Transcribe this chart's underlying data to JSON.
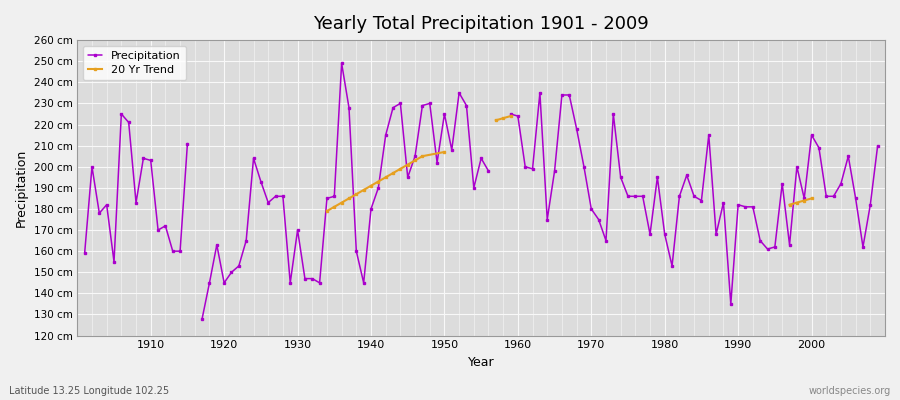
{
  "title": "Yearly Total Precipitation 1901 - 2009",
  "xlabel": "Year",
  "ylabel": "Precipitation",
  "footnote_left": "Latitude 13.25 Longitude 102.25",
  "footnote_right": "worldspecies.org",
  "ylim": [
    120,
    260
  ],
  "xlim": [
    1900,
    2010
  ],
  "bg_color": "#f0f0f0",
  "plot_bg_color": "#dcdcdc",
  "line_color": "#aa00cc",
  "trend_color": "#e6a020",
  "grid_color": "#f8f8f8",
  "years": [
    1901,
    1902,
    1903,
    1904,
    1905,
    1906,
    1907,
    1908,
    1909,
    1910,
    1911,
    1912,
    1913,
    1914,
    1915,
    1916,
    1917,
    1918,
    1919,
    1920,
    1921,
    1922,
    1923,
    1924,
    1925,
    1926,
    1927,
    1928,
    1929,
    1930,
    1931,
    1932,
    1933,
    1934,
    1935,
    1936,
    1937,
    1938,
    1939,
    1940,
    1941,
    1942,
    1943,
    1944,
    1945,
    1946,
    1947,
    1948,
    1949,
    1950,
    1951,
    1952,
    1953,
    1954,
    1955,
    1956,
    1957,
    1958,
    1959,
    1960,
    1961,
    1962,
    1963,
    1964,
    1965,
    1966,
    1967,
    1968,
    1969,
    1970,
    1971,
    1972,
    1973,
    1974,
    1975,
    1976,
    1977,
    1978,
    1979,
    1980,
    1981,
    1982,
    1983,
    1984,
    1985,
    1986,
    1987,
    1988,
    1989,
    1990,
    1991,
    1992,
    1993,
    1994,
    1995,
    1996,
    1997,
    1998,
    1999,
    2000,
    2001,
    2002,
    2003,
    2004,
    2005,
    2006,
    2007,
    2008,
    2009
  ],
  "precip": [
    159,
    200,
    178,
    182,
    155,
    225,
    221,
    183,
    204,
    203,
    170,
    172,
    160,
    160,
    211,
    null,
    128,
    145,
    163,
    145,
    150,
    153,
    165,
    204,
    193,
    183,
    186,
    186,
    145,
    170,
    147,
    147,
    145,
    185,
    186,
    249,
    228,
    160,
    145,
    180,
    190,
    215,
    228,
    230,
    195,
    205,
    229,
    230,
    202,
    225,
    208,
    235,
    229,
    190,
    204,
    198,
    null,
    null,
    225,
    224,
    200,
    199,
    235,
    175,
    198,
    234,
    234,
    218,
    200,
    180,
    175,
    165,
    225,
    195,
    186,
    186,
    186,
    168,
    195,
    168,
    153,
    186,
    196,
    186,
    184,
    215,
    168,
    183,
    135,
    182,
    181,
    181,
    165,
    161,
    162,
    192,
    163,
    200,
    185,
    215,
    209,
    186,
    186,
    192,
    205,
    185,
    162,
    182,
    210
  ],
  "trend_seg1_years": [
    1934,
    1935,
    1936,
    1937,
    1938,
    1939,
    1940,
    1941,
    1942,
    1943,
    1944,
    1945,
    1946,
    1947,
    1950
  ],
  "trend_seg1_values": [
    179,
    181,
    183,
    185,
    187,
    189,
    191,
    193,
    195,
    197,
    199,
    201,
    203,
    205,
    207
  ],
  "trend_seg2_years": [
    1957,
    1958,
    1959
  ],
  "trend_seg2_values": [
    222,
    223,
    224
  ],
  "trend_seg3_years": [
    1997,
    1998,
    1999,
    2000
  ],
  "trend_seg3_values": [
    182,
    183,
    184,
    185
  ]
}
